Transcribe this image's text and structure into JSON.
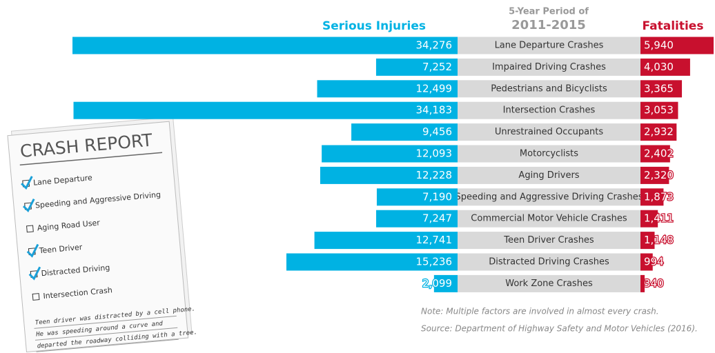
{
  "chart_data": {
    "type": "diverging-bar",
    "category_title": "5-Year Period of",
    "category_period": "2011-2015",
    "categories": [
      "Lane Departure Crashes",
      "Impaired Driving Crashes",
      "Pedestrians and Bicyclists",
      "Intersection Crashes",
      "Unrestrained Occupants",
      "Motorcyclists",
      "Aging Drivers",
      "Speeding and Aggressive Driving Crashes",
      "Commercial Motor Vehicle Crashes",
      "Teen Driver Crashes",
      "Distracted Driving Crashes",
      "Work Zone Crashes"
    ],
    "series": [
      {
        "name": "Serious Injuries",
        "color": "#00b2e3",
        "values": [
          34276,
          7252,
          12499,
          34183,
          9456,
          12093,
          12228,
          7190,
          7247,
          12741,
          15236,
          2099
        ],
        "value_labels": [
          "34,276",
          "7,252",
          "12,499",
          "34,183",
          "9,456",
          "12,093",
          "12,228",
          "7,190",
          "7,247",
          "12,741",
          "15,236",
          "2,099"
        ]
      },
      {
        "name": "Fatalities",
        "color": "#c8102e",
        "values": [
          5940,
          4030,
          3365,
          3053,
          2932,
          2402,
          2320,
          1873,
          1411,
          1148,
          994,
          340
        ],
        "value_labels": [
          "5,940",
          "4,030",
          "3,365",
          "3,053",
          "2,932",
          "2,402",
          "2,320",
          "1,873",
          "1,411",
          "1,148",
          "994",
          "340"
        ]
      }
    ],
    "note": "Note:  Multiple factors are involved in almost every crash.",
    "source": "Source: Department of Highway Safety and Motor Vehicles (2016)."
  },
  "crash_report": {
    "title": "CRASH REPORT",
    "items": [
      {
        "label": "Lane Departure",
        "checked": true
      },
      {
        "label": "Speeding and Aggressive Driving",
        "checked": true
      },
      {
        "label": "Aging Road User",
        "checked": false
      },
      {
        "label": "Teen Driver",
        "checked": true
      },
      {
        "label": "Distracted Driving",
        "checked": true
      },
      {
        "label": "Intersection Crash",
        "checked": false
      }
    ],
    "narrative": [
      "Teen driver was distracted by a cell phone.",
      "He was speeding around a curve and",
      "departed the roadway colliding with a tree."
    ]
  }
}
